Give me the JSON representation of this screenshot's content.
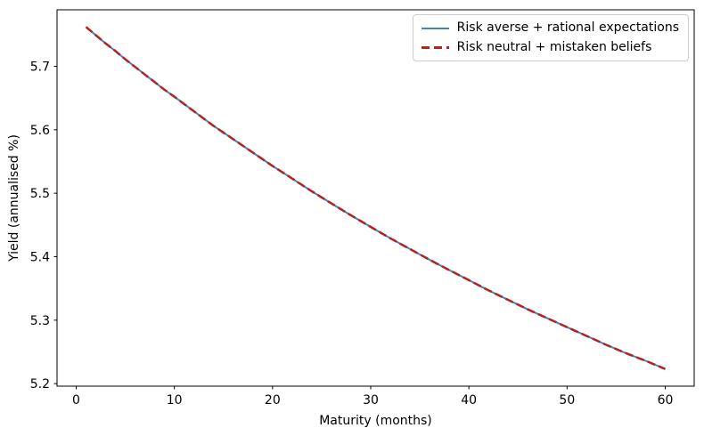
{
  "chart_data": {
    "type": "line",
    "title": "",
    "xlabel": "Maturity (months)",
    "ylabel": "Yield (annualised %)",
    "xlim": [
      -1.95,
      62.95
    ],
    "ylim": [
      5.196,
      5.789
    ],
    "xticks": [
      0,
      10,
      20,
      30,
      40,
      50,
      60
    ],
    "yticks": [
      5.2,
      5.3,
      5.4,
      5.5,
      5.6,
      5.7
    ],
    "grid": false,
    "legend_position": "upper right",
    "axis_color": "#000000",
    "background_color": "#ffffff",
    "x": [
      1,
      2,
      3,
      4,
      5,
      6,
      7,
      8,
      9,
      10,
      12,
      14,
      16,
      18,
      20,
      22,
      24,
      26,
      28,
      30,
      32,
      34,
      36,
      38,
      40,
      42,
      44,
      46,
      48,
      50,
      52,
      54,
      56,
      58,
      60
    ],
    "series": [
      {
        "name": "Risk averse + rational expectations",
        "color": "#4682B4",
        "line_style": "solid",
        "line_width": 2,
        "values": [
          5.762,
          5.749,
          5.736,
          5.724,
          5.711,
          5.699,
          5.687,
          5.675,
          5.663,
          5.652,
          5.629,
          5.606,
          5.585,
          5.564,
          5.543,
          5.523,
          5.503,
          5.484,
          5.465,
          5.447,
          5.429,
          5.412,
          5.395,
          5.379,
          5.363,
          5.347,
          5.332,
          5.317,
          5.303,
          5.289,
          5.275,
          5.261,
          5.248,
          5.236,
          5.223
        ]
      },
      {
        "name": "Risk neutral + mistaken beliefs",
        "color": "#B22222",
        "line_style": "dashed",
        "line_width": 2.5,
        "values": [
          5.762,
          5.749,
          5.736,
          5.724,
          5.711,
          5.699,
          5.687,
          5.675,
          5.663,
          5.652,
          5.629,
          5.606,
          5.585,
          5.564,
          5.543,
          5.523,
          5.503,
          5.484,
          5.465,
          5.447,
          5.429,
          5.412,
          5.395,
          5.379,
          5.363,
          5.347,
          5.332,
          5.317,
          5.303,
          5.289,
          5.275,
          5.261,
          5.248,
          5.236,
          5.223
        ]
      }
    ]
  }
}
